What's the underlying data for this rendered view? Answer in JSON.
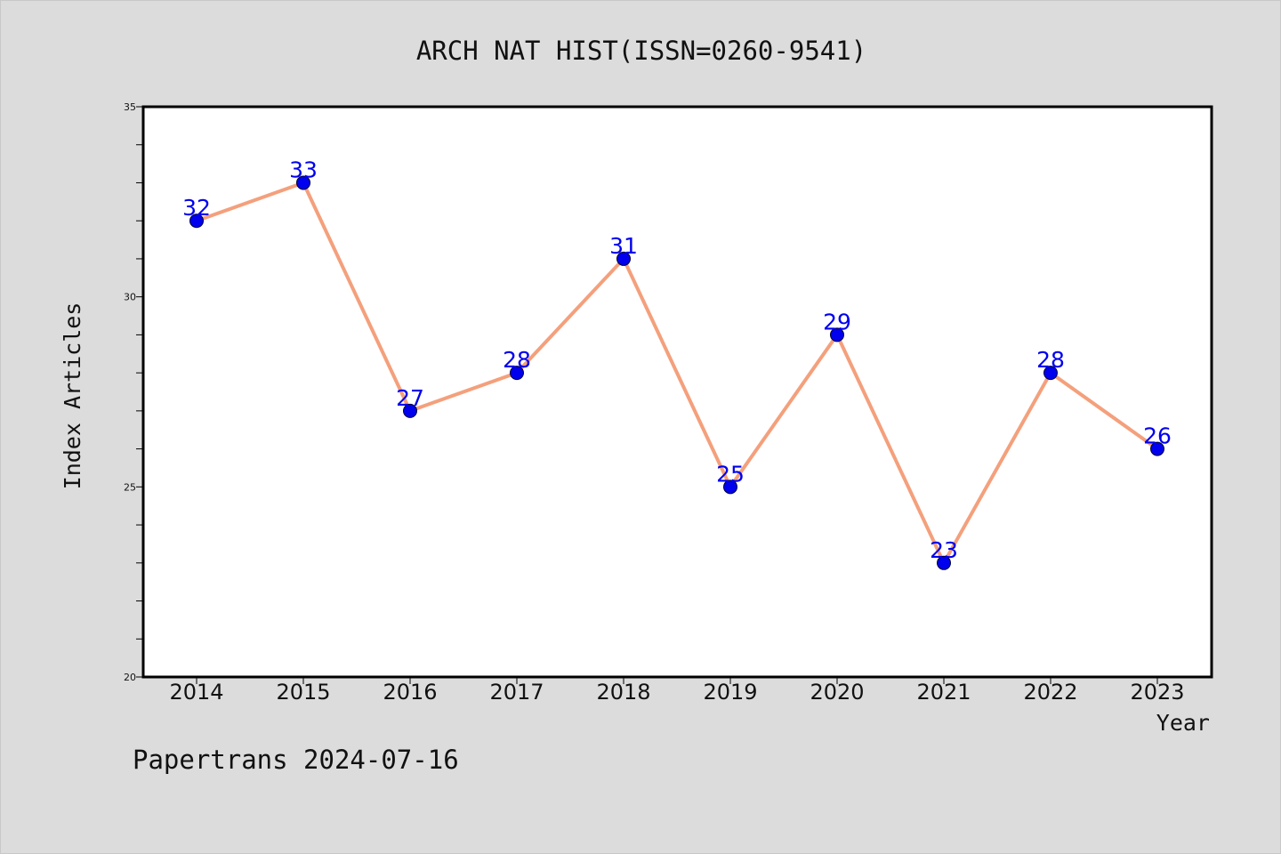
{
  "chart_data": {
    "type": "line",
    "title": "ARCH NAT HIST(ISSN=0260-9541)",
    "xlabel": "Year",
    "ylabel": "Index Articles",
    "categories": [
      "2014",
      "2015",
      "2016",
      "2017",
      "2018",
      "2019",
      "2020",
      "2021",
      "2022",
      "2023"
    ],
    "series": [
      {
        "values": [
          32,
          33,
          27,
          28,
          31,
          25,
          29,
          23,
          28,
          26
        ]
      }
    ],
    "ylim": [
      20,
      35
    ],
    "yticks": [
      20,
      25,
      30,
      35
    ],
    "y_minor_step": 1,
    "grid": false,
    "line_color": "#f4a07c",
    "marker_color": "#0000ee",
    "label_color": "#0000ee",
    "plot_background": "#ffffff",
    "figure_background": "#dcdcdc"
  },
  "footer": {
    "text": "Papertrans 2024-07-16"
  }
}
